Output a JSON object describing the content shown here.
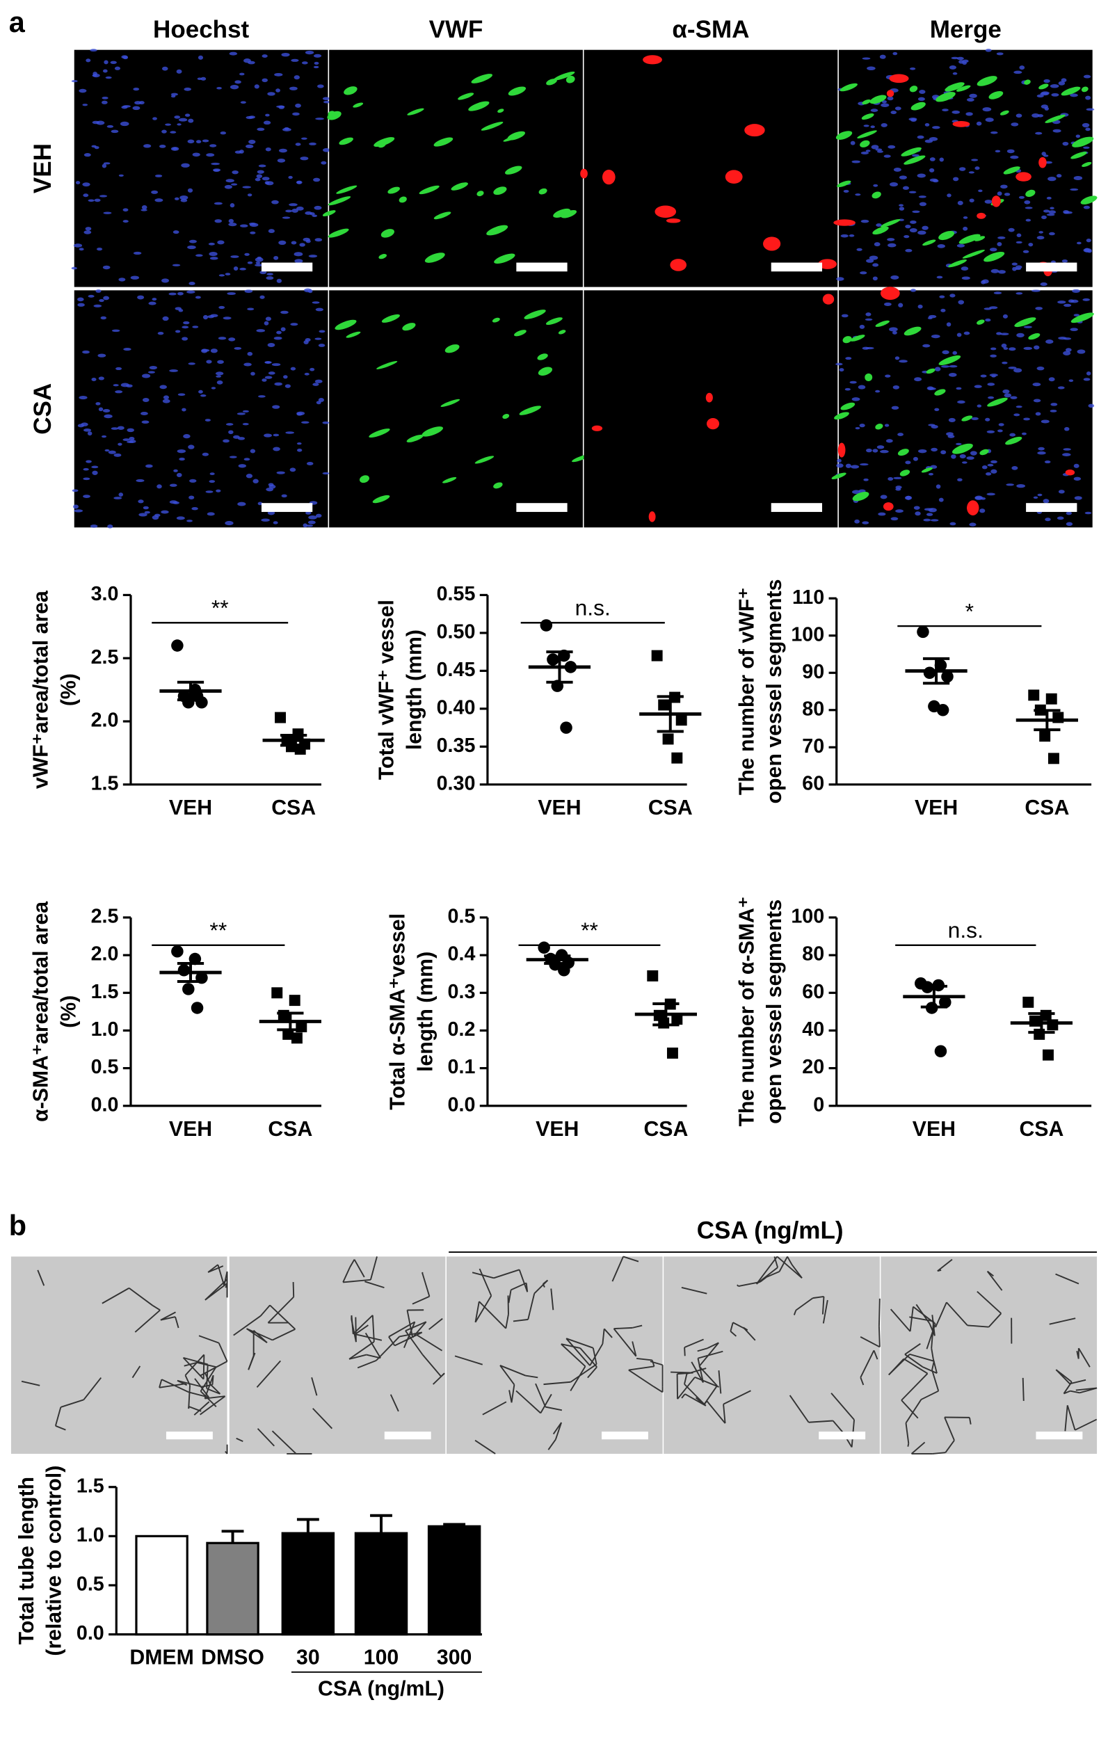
{
  "panel_a": {
    "label": "a",
    "columns": [
      "Hoechst",
      "VWF",
      "α-SMA",
      "Merge"
    ],
    "rows": [
      "VEH",
      "CSA"
    ]
  },
  "panel_b": {
    "label": "b",
    "group_label": "CSA (ng/mL)",
    "columns": [
      "DMEM",
      "DMSO",
      "30",
      "100",
      "300"
    ]
  },
  "chart_data": [
    {
      "type": "dot",
      "ylabel": [
        "vWF⁺area/total area",
        "(%)"
      ],
      "categories": [
        "VEH",
        "CSA"
      ],
      "markers": [
        "circle",
        "square"
      ],
      "color": "#000000",
      "points": [
        [
          2.6,
          2.25,
          2.2,
          2.15,
          2.15,
          2.2
        ],
        [
          2.03,
          1.9,
          1.85,
          1.82,
          1.8,
          1.78
        ]
      ],
      "means": [
        2.24,
        1.85
      ],
      "errors": [
        0.07,
        0.04
      ],
      "annotation": "**",
      "ylim": [
        1.5,
        3.0
      ],
      "yticks": [
        1.5,
        {
          "value": 2,
          "label": "2.0"
        },
        2.5,
        {
          "value": 3,
          "label": "3.0"
        }
      ]
    },
    {
      "type": "dot",
      "ylabel": [
        "Total vWF⁺ vessel",
        "length  (mm)"
      ],
      "categories": [
        "VEH",
        "CSA"
      ],
      "markers": [
        "circle",
        "square"
      ],
      "color": "#000000",
      "points": [
        [
          0.51,
          0.47,
          0.465,
          0.455,
          0.43,
          0.375
        ],
        [
          0.47,
          0.415,
          0.405,
          0.385,
          0.36,
          0.335
        ]
      ],
      "means": [
        0.455,
        0.393
      ],
      "errors": [
        0.02,
        0.023
      ],
      "annotation": "n.s.",
      "ylim": [
        0.3,
        0.55
      ],
      "yticks": [
        {
          "value": 0.3,
          "label": "0.30"
        },
        0.35,
        {
          "value": 0.4,
          "label": "0.40"
        },
        0.45,
        {
          "value": 0.5,
          "label": "0.50"
        },
        0.55
      ]
    },
    {
      "type": "dot",
      "ylabel": [
        "The number of vWF⁺",
        "open vessel segments"
      ],
      "categories": [
        "VEH",
        "CSA"
      ],
      "markers": [
        "circle",
        "square"
      ],
      "color": "#000000",
      "points": [
        [
          101,
          92,
          90,
          89,
          81,
          80
        ],
        [
          84,
          83,
          80,
          78,
          73,
          67
        ]
      ],
      "means": [
        90.5,
        77.3
      ],
      "errors": [
        3.3,
        2.6
      ],
      "annotation": "*",
      "ylim": [
        60,
        110
      ],
      "yticks": [
        60,
        70,
        80,
        90,
        100,
        110
      ]
    },
    {
      "type": "dot",
      "ylabel": [
        "α-SMA⁺area/total area",
        "(%)"
      ],
      "categories": [
        "VEH",
        "CSA"
      ],
      "markers": [
        "circle",
        "square"
      ],
      "color": "#000000",
      "points": [
        [
          2.05,
          1.95,
          1.8,
          1.7,
          1.55,
          1.3
        ],
        [
          1.5,
          1.4,
          1.2,
          1.05,
          0.95,
          0.9
        ]
      ],
      "means": [
        1.77,
        1.12
      ],
      "errors": [
        0.12,
        0.11
      ],
      "annotation": "**",
      "ylim": [
        0,
        2.5
      ],
      "yticks": [
        {
          "value": 0,
          "label": "0.0"
        },
        0.5,
        {
          "value": 1,
          "label": "1.0"
        },
        1.5,
        {
          "value": 2,
          "label": "2.0"
        },
        2.5
      ]
    },
    {
      "type": "dot",
      "ylabel": [
        "Total α-SMA⁺vessel",
        "length (mm)"
      ],
      "categories": [
        "VEH",
        "CSA"
      ],
      "markers": [
        "circle",
        "square"
      ],
      "color": "#000000",
      "points": [
        [
          0.42,
          0.4,
          0.39,
          0.38,
          0.375,
          0.36
        ],
        [
          0.345,
          0.27,
          0.24,
          0.23,
          0.22,
          0.14
        ]
      ],
      "means": [
        0.388,
        0.243
      ],
      "errors": [
        0.01,
        0.028
      ],
      "annotation": "**",
      "ylim": [
        0,
        0.5
      ],
      "yticks": [
        {
          "value": 0,
          "label": "0.0"
        },
        0.1,
        0.2,
        0.3,
        0.4,
        0.5
      ]
    },
    {
      "type": "dot",
      "ylabel": [
        "The number of α-SMA⁺",
        "open vessel segments"
      ],
      "categories": [
        "VEH",
        "CSA"
      ],
      "markers": [
        "circle",
        "square"
      ],
      "color": "#000000",
      "points": [
        [
          65,
          64,
          63,
          55,
          52,
          29
        ],
        [
          55,
          48,
          45,
          43,
          38,
          27
        ]
      ],
      "means": [
        58,
        44
      ],
      "errors": [
        5.5,
        5
      ],
      "annotation": "n.s.",
      "ylim": [
        0,
        100
      ],
      "yticks": [
        0,
        20,
        40,
        60,
        80,
        100
      ]
    },
    {
      "type": "bar",
      "ylabel": [
        "Total tube length",
        "(relative to control)"
      ],
      "categories": [
        "DMEM",
        "DMSO",
        "30",
        "100",
        "300"
      ],
      "values": [
        1.0,
        0.93,
        1.03,
        1.03,
        1.1
      ],
      "errors": [
        null,
        0.12,
        0.14,
        0.18,
        0.02
      ],
      "colors": [
        "#ffffff",
        "#808080",
        "#000000",
        "#000000",
        "#000000"
      ],
      "group_label": "CSA (ng/mL)",
      "ylim": [
        0,
        1.5
      ],
      "yticks": [
        {
          "value": 0,
          "label": "0.0"
        },
        0.5,
        {
          "value": 1,
          "label": "1.0"
        },
        1.5
      ]
    }
  ]
}
